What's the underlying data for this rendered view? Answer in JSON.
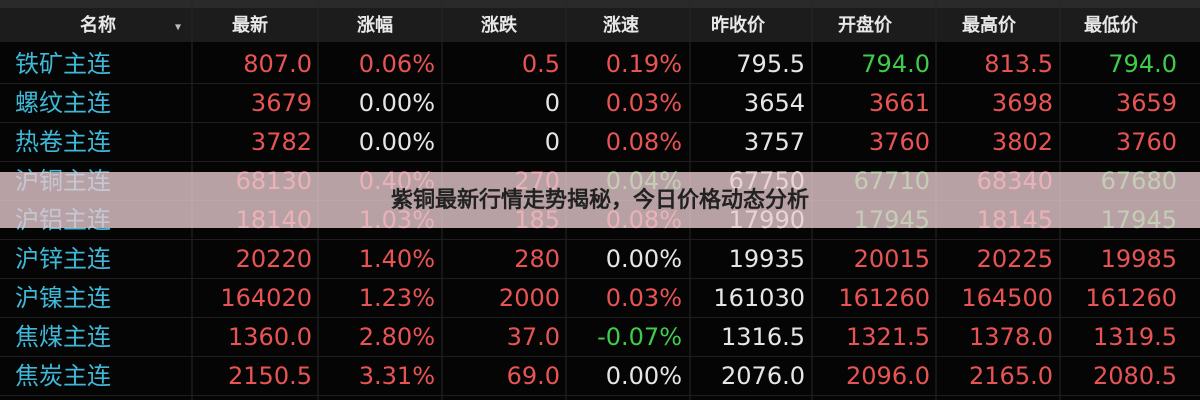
{
  "banner": {
    "title": "紫铜最新行情走势揭秘，今日价格动态分析"
  },
  "table": {
    "headers": [
      "名称",
      "最新",
      "涨幅",
      "涨跌",
      "涨速",
      "昨收价",
      "开盘价",
      "最高价",
      "最低价"
    ],
    "rows": [
      [
        "铁矿主连",
        "807.0",
        "0.06%",
        "0.5",
        "0.19%",
        "795.5",
        "794.0",
        "813.5",
        "794.0"
      ],
      [
        "螺纹主连",
        "3679",
        "0.00%",
        "0",
        "0.03%",
        "3654",
        "3661",
        "3698",
        "3659"
      ],
      [
        "热卷主连",
        "3782",
        "0.00%",
        "0",
        "0.08%",
        "3757",
        "3760",
        "3802",
        "3760"
      ],
      [
        "沪铜主连",
        "68130",
        "0.40%",
        "270",
        "0.04%",
        "67750",
        "67710",
        "68340",
        "67680"
      ],
      [
        "沪铝主连",
        "18140",
        "1.03%",
        "185",
        "0.08%",
        "17990",
        "17945",
        "18145",
        "17945"
      ],
      [
        "沪锌主连",
        "20220",
        "1.40%",
        "280",
        "0.00%",
        "19935",
        "20015",
        "20225",
        "19985"
      ],
      [
        "沪镍主连",
        "164020",
        "1.23%",
        "2000",
        "0.03%",
        "161030",
        "161260",
        "164500",
        "161260"
      ],
      [
        "焦煤主连",
        "1360.0",
        "2.80%",
        "37.0",
        "-0.07%",
        "1316.5",
        "1321.5",
        "1378.0",
        "1319.5"
      ],
      [
        "焦炭主连",
        "2150.5",
        "3.31%",
        "69.0",
        "0.00%",
        "2076.0",
        "2096.0",
        "2165.0",
        "2080.5"
      ]
    ],
    "cell_colors": [
      [
        "#3fb8d8",
        "#e85454",
        "#e85454",
        "#e85454",
        "#e85454",
        "#e6e6e6",
        "#3fcc4a",
        "#e85454",
        "#3fcc4a"
      ],
      [
        "#3fb8d8",
        "#e85454",
        "#e6e6e6",
        "#e6e6e6",
        "#e85454",
        "#e6e6e6",
        "#e85454",
        "#e85454",
        "#e85454"
      ],
      [
        "#3fb8d8",
        "#e85454",
        "#e6e6e6",
        "#e6e6e6",
        "#e85454",
        "#e6e6e6",
        "#e85454",
        "#e85454",
        "#e85454"
      ],
      [
        "#3fb8d8",
        "#e85454",
        "#e85454",
        "#e85454",
        "#3fcc4a",
        "#e6e6e6",
        "#3fcc4a",
        "#e85454",
        "#3fcc4a"
      ],
      [
        "#3fb8d8",
        "#e85454",
        "#e85454",
        "#e85454",
        "#e85454",
        "#e6e6e6",
        "#3fcc4a",
        "#e85454",
        "#3fcc4a"
      ],
      [
        "#3fb8d8",
        "#e85454",
        "#e85454",
        "#e85454",
        "#e6e6e6",
        "#e6e6e6",
        "#e85454",
        "#e85454",
        "#e85454"
      ],
      [
        "#3fb8d8",
        "#e85454",
        "#e85454",
        "#e85454",
        "#e85454",
        "#e6e6e6",
        "#e85454",
        "#e85454",
        "#e85454"
      ],
      [
        "#3fb8d8",
        "#e85454",
        "#e85454",
        "#e85454",
        "#3fcc4a",
        "#e6e6e6",
        "#e85454",
        "#e85454",
        "#e85454"
      ],
      [
        "#3fb8d8",
        "#e85454",
        "#e85454",
        "#e85454",
        "#e6e6e6",
        "#e6e6e6",
        "#e85454",
        "#e85454",
        "#e85454"
      ]
    ]
  }
}
